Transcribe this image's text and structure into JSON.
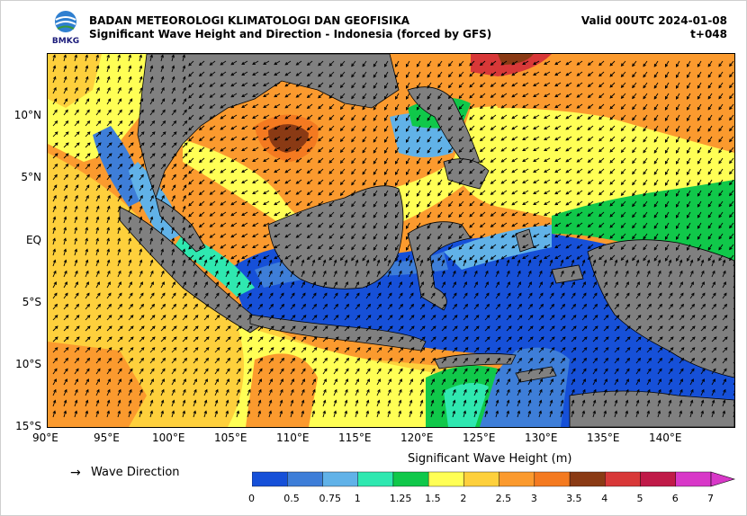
{
  "header": {
    "logo_text": "BMKG",
    "agency": "BADAN METEOROLOGI KLIMATOLOGI DAN GEOFISIKA",
    "subtitle": "Significant Wave Height and Direction - Indonesia (forced by GFS)",
    "valid": "Valid 00UTC 2024-01-08",
    "lead_time": "t+048"
  },
  "axes": {
    "lat_labels": [
      "10°N",
      "5°N",
      "EQ",
      "5°S",
      "10°S",
      "15°S"
    ],
    "lon_labels": [
      "90°E",
      "95°E",
      "100°E",
      "105°E",
      "110°E",
      "115°E",
      "120°E",
      "125°E",
      "130°E",
      "135°E",
      "140°E"
    ],
    "lat_range": [
      -15,
      15
    ],
    "lon_range": [
      90,
      145
    ]
  },
  "legend": {
    "arrow_symbol": "→",
    "arrow_label": "Wave Direction"
  },
  "colorbar": {
    "title": "Significant Wave Height (m)",
    "ticks": [
      "0",
      "0.5",
      "0.75",
      "1",
      "1.25",
      "1.5",
      "2",
      "2.5",
      "3",
      "3.5",
      "4",
      "5",
      "6",
      "7"
    ],
    "colors": [
      "#1650d8",
      "#3e7ed8",
      "#61b2e8",
      "#2fe8b0",
      "#10c84a",
      "#ffff55",
      "#fed03c",
      "#fb9a2e",
      "#f47a20",
      "#8a3a14",
      "#d83838",
      "#c01a48",
      "#d838c8",
      "#b03a9a"
    ]
  },
  "map_colors": {
    "land": "#808080",
    "border": "#000000",
    "arrow": "#000000"
  }
}
